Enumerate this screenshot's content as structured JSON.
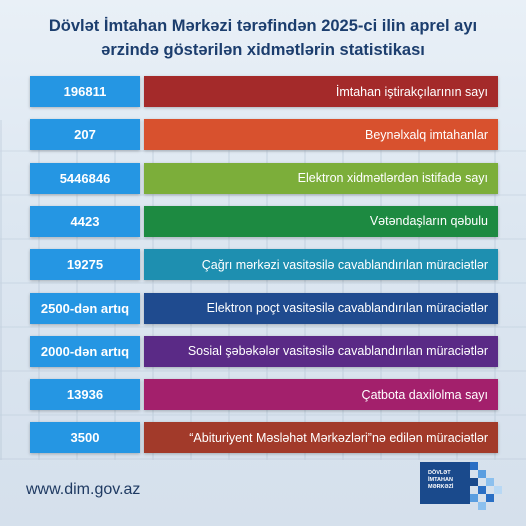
{
  "title": {
    "line1": "Dövlət İmtahan Mərkəzi tərəfindən 2025-ci ilin aprel ayı",
    "line2": "ərzində göstərilən xidmətlərin statistikası"
  },
  "rows": [
    {
      "value": "196811",
      "label": "İmtahan iştirakçılarının sayı",
      "color": "#a42a2a"
    },
    {
      "value": "207",
      "label": "Beynəlxalq imtahanlar",
      "color": "#d8512e"
    },
    {
      "value": "5446846",
      "label": "Elektron xidmətlərdən istifadə sayı",
      "color": "#7cae3a"
    },
    {
      "value": "4423",
      "label": "Vətəndaşların qəbulu",
      "color": "#1d8a41"
    },
    {
      "value": "19275",
      "label": "Çağrı mərkəzi vasitəsilə cavablandırılan müraciətlər",
      "color": "#1e8fb0"
    },
    {
      "value": "2500-dən artıq",
      "label": "Elektron poçt vasitəsilə cavablandırılan müraciətlər",
      "color": "#1f4b8f"
    },
    {
      "value": "2000-dən artıq",
      "label": "Sosial şəbəkələr vasitəsilə cavablandırılan müraciətlər",
      "color": "#5a2a86"
    },
    {
      "value": "13936",
      "label": "Çatbota daxilolma sayı",
      "color": "#a3206c"
    },
    {
      "value": "3500",
      "label": "“Abituriyent Məsləhət Mərkəzləri”nə edilən müraciətlər",
      "color": "#a23a2a"
    }
  ],
  "footer": {
    "url": "www.dim.gov.az",
    "logo_line1": "DÖVLƏT",
    "logo_line2": "İMTAHAN",
    "logo_line3": "MƏRKƏZİ"
  },
  "colors": {
    "number_box": "#2596e3",
    "title": "#1c3e6e",
    "logo": "#1a4a8c"
  }
}
